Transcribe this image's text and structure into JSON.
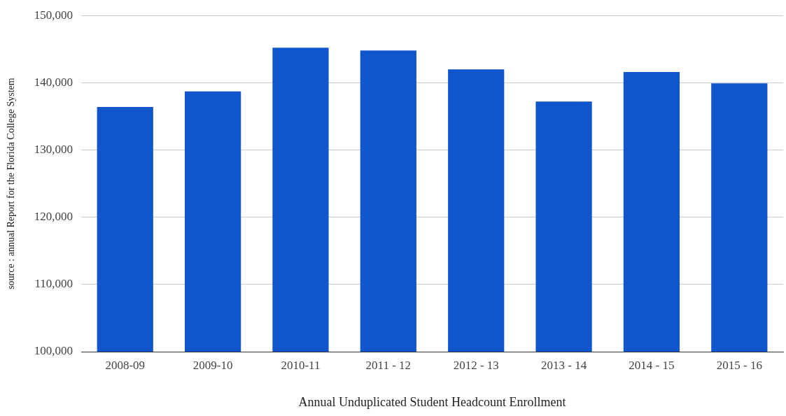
{
  "chart_data": {
    "type": "bar",
    "xlabel": "Annual Unduplicated Student Headcount Enrollment",
    "ylabel": "source : annual Report for the Florida College System",
    "categories": [
      "2008-09",
      "2009-10",
      "2010-11",
      "2011 - 12",
      "2012 - 13",
      "2013 - 14",
      "2014 - 15",
      "2015 - 16"
    ],
    "values": [
      136400,
      138700,
      145200,
      144800,
      142000,
      137200,
      141600,
      139900
    ],
    "color": "#1155cc",
    "ylim": [
      100000,
      150000
    ],
    "yticks": [
      {
        "value": 100000,
        "label": "100,000"
      },
      {
        "value": 110000,
        "label": "110,000"
      },
      {
        "value": 120000,
        "label": "120,000"
      },
      {
        "value": 130000,
        "label": "130,000"
      },
      {
        "value": 140000,
        "label": "140,000"
      },
      {
        "value": 150000,
        "label": "150,000"
      }
    ],
    "grid": "y"
  }
}
